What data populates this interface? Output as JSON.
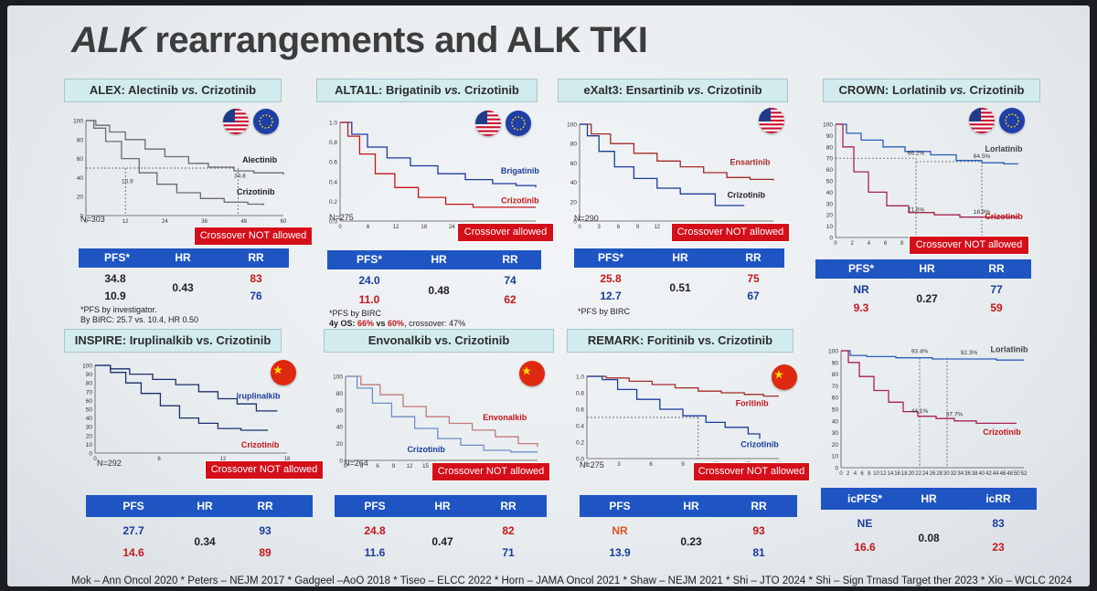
{
  "title": {
    "italic": "ALK",
    "rest": " rearrangements and ALK TKI"
  },
  "panels": {
    "alex": {
      "title_a": "ALEX: Alectinib ",
      "title_vs": "vs.",
      "title_b": " Crizotinib",
      "drug1": "Alectinib",
      "drug2": "Crizotinib",
      "n": "N=303",
      "crossover": "Crossover NOT allowed",
      "annot1": "34.8",
      "annot2": "10.9",
      "yticks": [
        "100",
        "80",
        "60",
        "40",
        "20",
        "0"
      ],
      "xticks": [
        "0",
        "12",
        "24",
        "36",
        "48",
        "60"
      ],
      "headers": [
        "PFS*",
        "HR",
        "RR"
      ],
      "row1": [
        "34.8",
        "83"
      ],
      "row2": [
        "10.9",
        "76"
      ],
      "hr": "0.43",
      "note1": "*PFS by investigator.",
      "note2": "By BIRC: 25.7 vs. 10.4, HR 0.50",
      "flags": [
        "us-flag",
        "eu-flag"
      ]
    },
    "alta": {
      "title_a": "ALTA1L: Brigatinib ",
      "title_vs": "vs.",
      "title_b": " Crizotinib",
      "drug1": "Brigatinib",
      "drug2": "Crizotinib",
      "n": "N=275",
      "crossover": "Crossover allowed",
      "yticks": [
        "1.0",
        "0.8",
        "0.6",
        "0.4",
        "0.2",
        "0.0"
      ],
      "xticks": [
        "0",
        "6",
        "12",
        "18",
        "24",
        "30",
        "36",
        "42"
      ],
      "headers": [
        "PFS*",
        "HR",
        "RR"
      ],
      "row1": [
        "24.0",
        "74"
      ],
      "row2": [
        "11.0",
        "62"
      ],
      "hr": "0.48",
      "note1": "*PFS by BIRC",
      "note2a": "4y OS: ",
      "note2b": "66%",
      "note2c": " vs ",
      "note2d": "60%",
      "note2e": ", crossover: 47%",
      "flags": [
        "us-flag",
        "eu-flag"
      ]
    },
    "exalt": {
      "title_a": "eXalt3: Ensartinib ",
      "title_vs": "vs.",
      "title_b": " Crizotinib",
      "drug1": "Ensartinib",
      "drug2": "Crizotinib",
      "n": "N=290",
      "crossover": "Crossover NOT allowed",
      "yticks": [
        "100",
        "80",
        "60",
        "40",
        "20",
        "0"
      ],
      "xticks": [
        "0",
        "3",
        "6",
        "9",
        "12",
        "15",
        "18",
        "21",
        "24",
        "27",
        "30"
      ],
      "headers": [
        "PFS*",
        "HR",
        "RR"
      ],
      "row1": [
        "25.8",
        "75"
      ],
      "row2": [
        "12.7",
        "67"
      ],
      "hr": "0.51",
      "note1": "*PFS by BIRC",
      "flags": [
        "us-flag"
      ]
    },
    "crown": {
      "title_a": "CROWN: Lorlatinib ",
      "title_vs": "vs.",
      "title_b": " Crizotinib",
      "drug1": "Lorlatinib",
      "drug2": "Crizotinib",
      "crossover": "Crossover NOT allowed",
      "pct1": "66.2%",
      "pct2": "64.5%",
      "pct3": "21.5%",
      "pct4": "18.9%",
      "yticks": [
        "100",
        "90",
        "80",
        "70",
        "60",
        "50",
        "40",
        "30",
        "20",
        "10",
        "0"
      ],
      "xticks": [
        "0",
        "2",
        "4",
        "6",
        "8",
        "10",
        "12",
        "14",
        "16",
        "18",
        "20",
        "22"
      ],
      "headers": [
        "PFS*",
        "HR",
        "RR"
      ],
      "row1": [
        "NR",
        "77"
      ],
      "row2": [
        "9.3",
        "59"
      ],
      "hr": "0.27",
      "flags": [
        "us-flag",
        "eu-flag"
      ]
    },
    "inspire": {
      "title": "INSPIRE: Iruplinalkib vs. Crizotinib",
      "drug1": "iruplinalkib",
      "drug2": "Crizotinib",
      "n": "N=292",
      "crossover": "Crossover NOT allowed",
      "yticks": [
        "100",
        "90",
        "80",
        "70",
        "60",
        "50",
        "40",
        "30",
        "20",
        "10",
        "0"
      ],
      "xticks": [
        "0",
        "6",
        "12",
        "18"
      ],
      "headers": [
        "PFS",
        "HR",
        "RR"
      ],
      "row1": [
        "27.7",
        "93"
      ],
      "row2": [
        "14.6",
        "89"
      ],
      "hr": "0.34",
      "flags": [
        "cn-flag"
      ]
    },
    "envonal": {
      "title": "Envonalkib vs. Crizotinib",
      "drug1": "Envonalkib",
      "drug2": "Crizotinib",
      "n": "N=264",
      "crossover": "Crossover NOT allowed",
      "yticks": [
        "100",
        "80",
        "60",
        "40",
        "20",
        "0"
      ],
      "xticks": [
        "0",
        "3",
        "6",
        "9",
        "12",
        "15",
        "18",
        "21",
        "24",
        "27",
        "30",
        "33",
        "36"
      ],
      "headers": [
        "PFS",
        "HR",
        "RR"
      ],
      "row1": [
        "24.8",
        "82"
      ],
      "row2": [
        "11.6",
        "71"
      ],
      "hr": "0.47",
      "flags": [
        "cn-flag"
      ]
    },
    "remark": {
      "title": "REMARK: Foritinib vs. Crizotinib",
      "drug1": "Foritinib",
      "drug2": "Crizotinib",
      "n": "N=275",
      "crossover": "Crossover NOT allowed",
      "yticks": [
        "1.0",
        "0.8",
        "0.6",
        "0.4",
        "0.2",
        "0.0"
      ],
      "xticks": [
        "0",
        "3",
        "6",
        "9",
        "12",
        "15",
        "18"
      ],
      "headers": [
        "PFS",
        "HR",
        "RR"
      ],
      "row1": [
        "NR",
        "93"
      ],
      "row2": [
        "13.9",
        "81"
      ],
      "hr": "0.23",
      "flags": [
        "cn-flag"
      ]
    },
    "crown_ic": {
      "drug1": "Lorlatinib",
      "drug2": "Crizotinib",
      "pct1": "93.4%",
      "pct2": "92.3%",
      "pct3": "44.1%",
      "pct4": "37.7%",
      "yticks": [
        "100",
        "90",
        "80",
        "70",
        "60",
        "50",
        "40",
        "30",
        "20",
        "10",
        "0"
      ],
      "xticks": [
        "0",
        "2",
        "4",
        "6",
        "8",
        "10",
        "12",
        "14",
        "16",
        "18",
        "20",
        "22",
        "24",
        "26",
        "28",
        "30",
        "32",
        "34",
        "36",
        "38",
        "40",
        "42",
        "44",
        "46",
        "48",
        "50",
        "52"
      ],
      "headers": [
        "icPFS*",
        "HR",
        "icRR"
      ],
      "row1": [
        "NE",
        "83"
      ],
      "row2": [
        "16.6",
        "23"
      ],
      "hr": "0.08"
    }
  },
  "references": "Mok – Ann Oncol 2020 * Peters – NEJM 2017 * Gadgeel –AoO 2018 * Tiseo – ELCC 2022 * Horn – JAMA Oncol 2021 * Shaw – NEJM 2021 * Shi – JTO 2024 * Shi – Sign Trnasd Target ther 2023 * Xio – WCLC 2024",
  "colors": {
    "blue_header": "#1f55c3",
    "crossover_red": "#d40f1a",
    "drug_red": "#c4161c",
    "drug_blue": "#1c3b9b",
    "title_box": "#d2ebee"
  }
}
